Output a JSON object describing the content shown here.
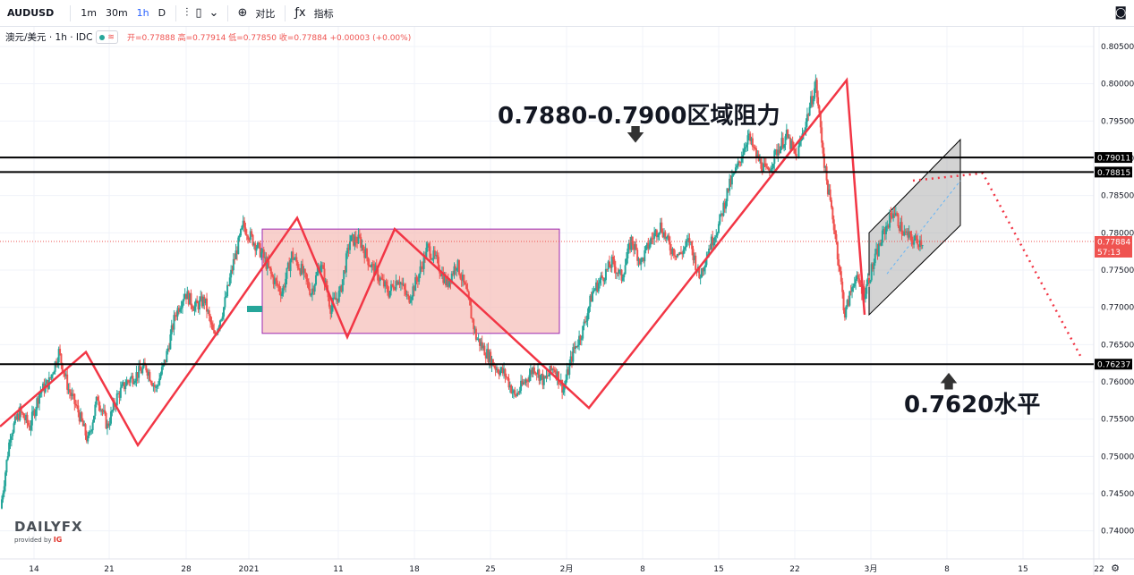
{
  "toolbar": {
    "symbol": "AUDUSD",
    "timeframes": [
      "1m",
      "30m",
      "1h",
      "D"
    ],
    "active_timeframe": "1h",
    "compare_label": "对比",
    "indicators_label": "指标",
    "icons": [
      "bar-style-icon",
      "candle-style-icon",
      "chevron-down-icon",
      "plus-circle-icon",
      "fx-icon",
      "camera-icon"
    ]
  },
  "legend": {
    "name": "澳元/美元 · 1h · IDC",
    "ohlc": "开=0.77888 高=0.77914 低=0.77850 收=0.77884 +0.00003 (+0.00%)"
  },
  "watermark": {
    "brand": "DAILYFX",
    "provided_by": "provided by",
    "ig": "IG"
  },
  "colors": {
    "up": "#26a69a",
    "down": "#ef5350",
    "line": "#000000",
    "zigzag": "#f23645",
    "range_fill": "#f5b7b1",
    "range_border": "#9c27b0"
  },
  "chart_data": {
    "type": "candlestick",
    "title": "",
    "xlabel": "",
    "ylabel": "",
    "ylim": [
      0.7375,
      0.8085
    ],
    "y_ticks": [
      "0.80500",
      "0.80000",
      "0.79500",
      "0.79000",
      "0.78500",
      "0.78000",
      "0.77500",
      "0.77000",
      "0.76500",
      "0.76000",
      "0.75500",
      "0.75000",
      "0.74500",
      "0.74000"
    ],
    "x_ticks": [
      "14",
      "21",
      "28",
      "2021",
      "11",
      "18",
      "25",
      "2月",
      "8",
      "15",
      "22",
      "3月",
      "8",
      "15",
      "22"
    ],
    "horizontal_levels": [
      {
        "value": 0.79011,
        "label": "0.79011"
      },
      {
        "value": 0.78815,
        "label": "0.78815"
      },
      {
        "value": 0.76237,
        "label": "0.76237"
      }
    ],
    "current_price": {
      "value": 0.77884,
      "label": "0.77884",
      "countdown": "57:13"
    },
    "annotations": [
      {
        "text": "0.7880-0.7900区域阻力",
        "points_to": 0.7901
      },
      {
        "text": "0.7620水平",
        "points_to": 0.7624
      }
    ],
    "price_path": [
      0.743,
      0.753,
      0.756,
      0.754,
      0.7585,
      0.76,
      0.764,
      0.759,
      0.756,
      0.752,
      0.758,
      0.754,
      0.758,
      0.76,
      0.761,
      0.762,
      0.759,
      0.763,
      0.769,
      0.772,
      0.77,
      0.771,
      0.766,
      0.77,
      0.776,
      0.781,
      0.779,
      0.777,
      0.774,
      0.772,
      0.777,
      0.775,
      0.772,
      0.776,
      0.77,
      0.772,
      0.779,
      0.779,
      0.776,
      0.774,
      0.772,
      0.774,
      0.771,
      0.774,
      0.778,
      0.776,
      0.773,
      0.776,
      0.772,
      0.766,
      0.764,
      0.762,
      0.761,
      0.758,
      0.76,
      0.762,
      0.76,
      0.762,
      0.759,
      0.764,
      0.767,
      0.772,
      0.774,
      0.776,
      0.774,
      0.779,
      0.776,
      0.779,
      0.781,
      0.778,
      0.777,
      0.779,
      0.774,
      0.778,
      0.781,
      0.786,
      0.789,
      0.793,
      0.79,
      0.788,
      0.791,
      0.793,
      0.79,
      0.795,
      0.8,
      0.788,
      0.78,
      0.769,
      0.774,
      0.772,
      0.776,
      0.78,
      0.783,
      0.78,
      0.779,
      0.77884
    ],
    "zigzag_path": [
      {
        "date": "Jan 11 (week)",
        "value": 0.754
      },
      {
        "date": "Jan 18",
        "value": 0.764
      },
      {
        "date": "Jan 24",
        "value": 0.7515
      },
      {
        "date": "Jan 31",
        "value": 0.762
      },
      {
        "date": "Jan 6",
        "value": 0.782
      },
      {
        "date": "Jan 12",
        "value": 0.766
      },
      {
        "date": "Jan 16",
        "value": 0.7805
      },
      {
        "date": "Feb 4",
        "value": 0.7565
      },
      {
        "date": "Feb 24",
        "value": 0.8005
      },
      {
        "date": "Mar 1",
        "value": 0.769
      }
    ],
    "range_box": {
      "top": 0.7805,
      "bottom": 0.7665
    },
    "channel": {
      "upper_start": 0.78,
      "upper_end": 0.7925,
      "lower_start": 0.769,
      "lower_end": 0.781,
      "mid_end": 0.787
    },
    "projection": [
      {
        "value": 0.787
      },
      {
        "value": 0.788
      },
      {
        "value": 0.7635
      }
    ]
  }
}
